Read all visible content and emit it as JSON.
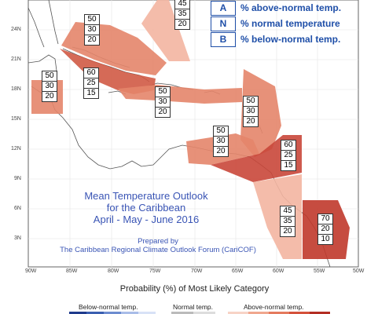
{
  "key": {
    "items": [
      {
        "letter": "A",
        "text": "% above-normal temp."
      },
      {
        "letter": "N",
        "text": "% normal temperature"
      },
      {
        "letter": "B",
        "text": "% below-normal temp."
      }
    ],
    "top_partial": [
      "45",
      "35",
      "20"
    ]
  },
  "title_lines": [
    "Mean Temperature Outlook",
    "for the Caribbean",
    "April - May - June 2016"
  ],
  "credit_lines": [
    "Prepared by",
    "The Caribbean Regional Climate Outlook Forum (CariCOF)"
  ],
  "lat_labels": [
    "24N",
    "21N",
    "18N",
    "15N",
    "12N",
    "9N",
    "6N",
    "3N"
  ],
  "lon_labels": [
    "90W",
    "85W",
    "80W",
    "75W",
    "70W",
    "65W",
    "60W",
    "55W",
    "50W"
  ],
  "regions": [
    {
      "name": "bahamas",
      "a": "50",
      "n": "30",
      "b": "20",
      "color": "#e4856a"
    },
    {
      "name": "cuba",
      "a": "60",
      "n": "25",
      "b": "15",
      "color": "#d05a45"
    },
    {
      "name": "belize",
      "a": "50",
      "n": "30",
      "b": "20",
      "color": "#e4856a"
    },
    {
      "name": "hispaniola-jamaica",
      "a": "50",
      "n": "30",
      "b": "20",
      "color": "#e4856a"
    },
    {
      "name": "eastern-caribbean",
      "a": "50",
      "n": "30",
      "b": "20",
      "color": "#e4856a"
    },
    {
      "name": "abc-islands",
      "a": "50",
      "n": "30",
      "b": "20",
      "color": "#e4856a"
    },
    {
      "name": "trinidad",
      "a": "60",
      "n": "25",
      "b": "15",
      "color": "#c9473a"
    },
    {
      "name": "guyana-suriname",
      "a": "45",
      "n": "35",
      "b": "20",
      "color": "#f3b5a1"
    },
    {
      "name": "french-guiana",
      "a": "70",
      "n": "20",
      "b": "10",
      "color": "#c0392b"
    }
  ],
  "legend": {
    "title": "Probability (%) of Most Likely Category",
    "below": "Below-normal temp.",
    "normal": "Normal temp.",
    "above": "Above-normal temp.",
    "below_colors": [
      "#1f3b8c",
      "#3b5fb0",
      "#6d8cd0",
      "#a9bde8",
      "#d8e2f6"
    ],
    "normal_colors": [
      "#bbbbbb",
      "#dddddd"
    ],
    "above_colors": [
      "#f7d3c6",
      "#f0a78e",
      "#e47a5e",
      "#d4513b",
      "#b32d22"
    ]
  }
}
